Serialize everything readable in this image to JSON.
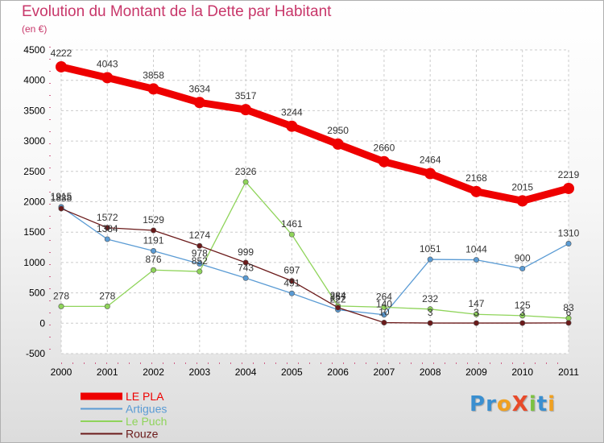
{
  "title": "Evolution du Montant de la Dette par Habitant",
  "subtitle": "(en €)",
  "logo": {
    "text": "ProXiti",
    "letters": [
      "P",
      "r",
      "o",
      "X",
      "i",
      "t",
      "i"
    ],
    "colors": [
      "#3a8fd0",
      "#3a8fd0",
      "#f0a020",
      "#e84a2a",
      "#7cc242",
      "#3a8fd0",
      "#f0a020"
    ]
  },
  "chart_data": {
    "type": "line",
    "x": [
      "2000",
      "2001",
      "2002",
      "2003",
      "2004",
      "2005",
      "2006",
      "2007",
      "2008",
      "2009",
      "2010",
      "2011"
    ],
    "ylim": [
      -500,
      4500
    ],
    "yticks": [
      -500,
      0,
      500,
      1000,
      1500,
      2000,
      2500,
      3000,
      3500,
      4000,
      4500
    ],
    "grid": true,
    "legend_position": "bottom-left",
    "series": [
      {
        "name": "LE PLA",
        "color": "#ee0000",
        "width": 9,
        "marker": 7,
        "values": [
          4222,
          4043,
          3858,
          3634,
          3517,
          3244,
          2950,
          2660,
          2464,
          2168,
          2015,
          2219
        ],
        "labels": [
          "4222",
          "4043",
          "3858",
          "3634",
          "3517",
          "3244",
          "2950",
          "2660",
          "2464",
          "2168",
          "2015",
          "2219"
        ]
      },
      {
        "name": "Artigues",
        "color": "#5a9bd4",
        "width": 1.3,
        "marker": 3.2,
        "values": [
          1915,
          1384,
          1191,
          978,
          743,
          491,
          222,
          140,
          1051,
          1044,
          900,
          1310
        ],
        "labels": [
          "1915",
          "1384",
          "1191",
          "978",
          "743",
          "491",
          "222",
          "140",
          "1051",
          "1044",
          "900",
          "1310"
        ]
      },
      {
        "name": "Le Puch",
        "color": "#8fd45a",
        "width": 1.3,
        "marker": 3.2,
        "values": [
          278,
          278,
          876,
          852,
          2326,
          1461,
          284,
          264,
          232,
          147,
          125,
          83
        ],
        "labels": [
          "278",
          "278",
          "876",
          "852",
          "2326",
          "1461",
          "284",
          "264",
          "232",
          "147",
          "125",
          "83"
        ]
      },
      {
        "name": "Rouze",
        "color": "#6b1a1a",
        "width": 1.3,
        "marker": 3.2,
        "values": [
          1888,
          1572,
          1529,
          1274,
          999,
          697,
          257,
          10,
          3,
          3,
          3,
          6
        ],
        "labels": [
          "1888",
          "1572",
          "1529",
          "1274",
          "999",
          "697",
          "257",
          "10",
          "3",
          "3",
          "3",
          "6"
        ]
      }
    ]
  }
}
